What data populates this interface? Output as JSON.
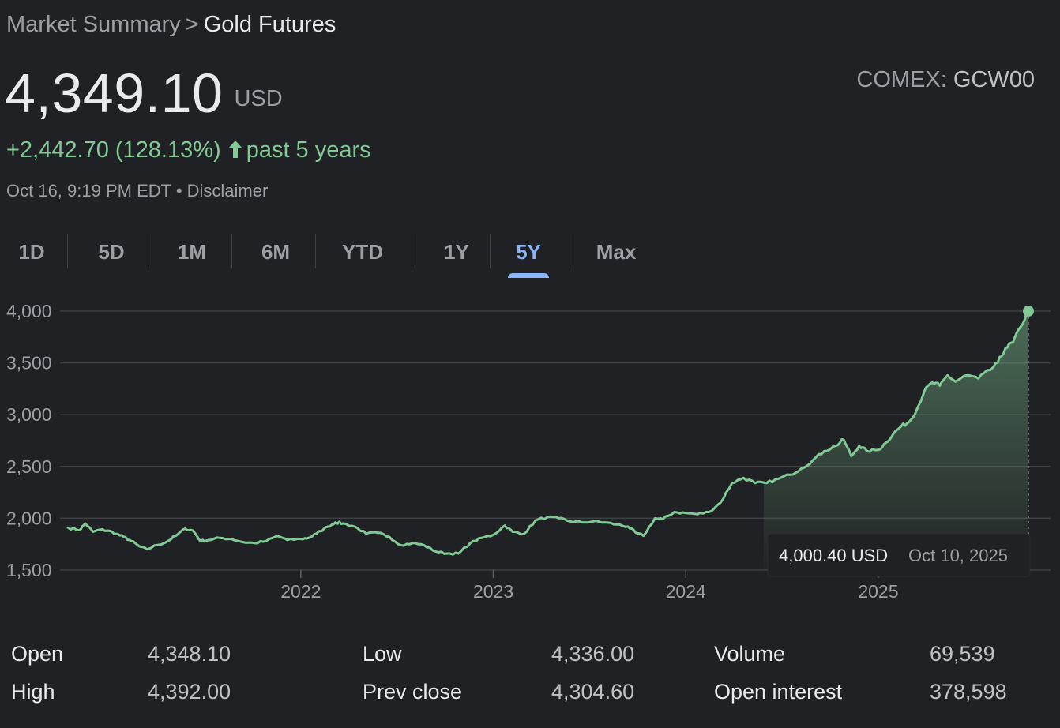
{
  "breadcrumb": {
    "parent": "Market Summary",
    "separator": ">",
    "current": "Gold Futures"
  },
  "quote": {
    "price": "4,349.10",
    "currency": "USD",
    "exchange": "COMEX:",
    "symbol": "GCW00",
    "change": "+2,442.70 (128.13%)",
    "change_icon": "arrow-up-icon",
    "change_period": "past 5 years",
    "timestamp": "Oct 16, 9:19 PM EDT",
    "timestamp_sep": "•",
    "disclaimer": "Disclaimer"
  },
  "tabs": [
    {
      "label": "1D",
      "active": false
    },
    {
      "label": "5D",
      "active": false
    },
    {
      "label": "1M",
      "active": false
    },
    {
      "label": "6M",
      "active": false
    },
    {
      "label": "YTD",
      "active": false
    },
    {
      "label": "1Y",
      "active": false
    },
    {
      "label": "5Y",
      "active": true
    },
    {
      "label": "Max",
      "active": false
    }
  ],
  "colors": {
    "background": "#202124",
    "accent": "#8ab4f8",
    "positive": "#81c995",
    "grid": "#3c4043"
  },
  "chart_data": {
    "type": "area",
    "ylim": [
      1500,
      4000
    ],
    "y_ticks": [
      4000,
      3500,
      3000,
      2500,
      2000,
      1500
    ],
    "y_tick_labels": [
      "4,000",
      "3,500",
      "3,000",
      "2,500",
      "2,000",
      "1,500"
    ],
    "x_range": [
      2020.79,
      2025.78
    ],
    "x_ticks": [
      2022,
      2023,
      2024,
      2025
    ],
    "x_tick_labels": [
      "2022",
      "2023",
      "2024",
      "2025"
    ],
    "grid": true,
    "series": [
      {
        "points": [
          [
            2020.79,
            1910
          ],
          [
            2020.85,
            1885
          ],
          [
            2020.88,
            1950
          ],
          [
            2020.92,
            1870
          ],
          [
            2020.96,
            1890
          ],
          [
            2021.0,
            1880
          ],
          [
            2021.04,
            1850
          ],
          [
            2021.08,
            1820
          ],
          [
            2021.12,
            1780
          ],
          [
            2021.16,
            1730
          ],
          [
            2021.2,
            1700
          ],
          [
            2021.25,
            1740
          ],
          [
            2021.3,
            1770
          ],
          [
            2021.35,
            1830
          ],
          [
            2021.4,
            1900
          ],
          [
            2021.44,
            1880
          ],
          [
            2021.48,
            1780
          ],
          [
            2021.52,
            1790
          ],
          [
            2021.58,
            1810
          ],
          [
            2021.64,
            1800
          ],
          [
            2021.7,
            1770
          ],
          [
            2021.76,
            1760
          ],
          [
            2021.82,
            1780
          ],
          [
            2021.88,
            1830
          ],
          [
            2021.93,
            1790
          ],
          [
            2022.0,
            1800
          ],
          [
            2022.04,
            1810
          ],
          [
            2022.08,
            1850
          ],
          [
            2022.14,
            1920
          ],
          [
            2022.18,
            1960
          ],
          [
            2022.22,
            1950
          ],
          [
            2022.28,
            1920
          ],
          [
            2022.34,
            1850
          ],
          [
            2022.4,
            1860
          ],
          [
            2022.46,
            1820
          ],
          [
            2022.52,
            1740
          ],
          [
            2022.58,
            1760
          ],
          [
            2022.64,
            1740
          ],
          [
            2022.7,
            1680
          ],
          [
            2022.76,
            1660
          ],
          [
            2022.82,
            1660
          ],
          [
            2022.88,
            1760
          ],
          [
            2022.94,
            1810
          ],
          [
            2023.0,
            1840
          ],
          [
            2023.06,
            1930
          ],
          [
            2023.1,
            1870
          ],
          [
            2023.16,
            1850
          ],
          [
            2023.22,
            1980
          ],
          [
            2023.28,
            2010
          ],
          [
            2023.34,
            2000
          ],
          [
            2023.4,
            1970
          ],
          [
            2023.46,
            1960
          ],
          [
            2023.52,
            1970
          ],
          [
            2023.58,
            1960
          ],
          [
            2023.64,
            1940
          ],
          [
            2023.7,
            1920
          ],
          [
            2023.74,
            1860
          ],
          [
            2023.78,
            1830
          ],
          [
            2023.84,
            2000
          ],
          [
            2023.88,
            1990
          ],
          [
            2023.94,
            2060
          ],
          [
            2024.0,
            2050
          ],
          [
            2024.06,
            2040
          ],
          [
            2024.12,
            2060
          ],
          [
            2024.18,
            2150
          ],
          [
            2024.24,
            2340
          ],
          [
            2024.3,
            2390
          ],
          [
            2024.36,
            2340
          ],
          [
            2024.42,
            2340
          ],
          [
            2024.48,
            2380
          ],
          [
            2024.54,
            2420
          ],
          [
            2024.6,
            2480
          ],
          [
            2024.66,
            2560
          ],
          [
            2024.72,
            2650
          ],
          [
            2024.78,
            2700
          ],
          [
            2024.82,
            2760
          ],
          [
            2024.86,
            2600
          ],
          [
            2024.9,
            2700
          ],
          [
            2024.94,
            2650
          ],
          [
            2025.0,
            2660
          ],
          [
            2025.04,
            2730
          ],
          [
            2025.08,
            2820
          ],
          [
            2025.12,
            2890
          ],
          [
            2025.16,
            2930
          ],
          [
            2025.2,
            3050
          ],
          [
            2025.24,
            3230
          ],
          [
            2025.28,
            3310
          ],
          [
            2025.32,
            3280
          ],
          [
            2025.36,
            3380
          ],
          [
            2025.4,
            3320
          ],
          [
            2025.46,
            3380
          ],
          [
            2025.52,
            3350
          ],
          [
            2025.58,
            3430
          ],
          [
            2025.62,
            3500
          ],
          [
            2025.66,
            3640
          ],
          [
            2025.7,
            3700
          ],
          [
            2025.74,
            3850
          ],
          [
            2025.78,
            4000.4
          ]
        ]
      }
    ],
    "tooltip": {
      "value": "4,000.40 USD",
      "date": "Oct 10, 2025",
      "x": 2025.78,
      "y": 4000.4
    }
  },
  "stats": [
    {
      "label": "Open",
      "value": "4,348.10"
    },
    {
      "label": "High",
      "value": "4,392.00"
    },
    {
      "label": "Low",
      "value": "4,336.00"
    },
    {
      "label": "Prev close",
      "value": "4,304.60"
    },
    {
      "label": "Volume",
      "value": "69,539"
    },
    {
      "label": "Open interest",
      "value": "378,598"
    }
  ]
}
